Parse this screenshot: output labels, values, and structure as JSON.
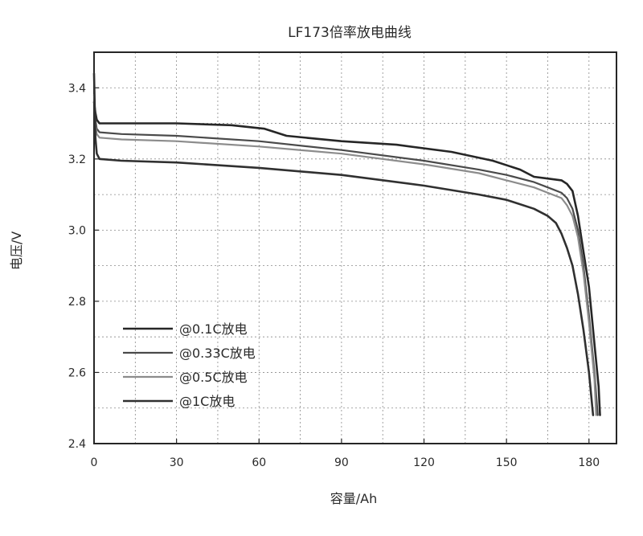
{
  "chart_data": {
    "type": "line",
    "title": "LF173倍率放电曲线",
    "xlabel": "容量/Ah",
    "ylabel": "电压/V",
    "xlim": [
      0,
      190
    ],
    "ylim": [
      2.4,
      3.5
    ],
    "xticks": [
      "0",
      "30",
      "60",
      "90",
      "120",
      "150",
      "180"
    ],
    "yticks": [
      "2.4",
      "2.6",
      "2.8",
      "3.0",
      "3.2",
      "3.4"
    ],
    "grid": true,
    "legend_position": "bottom-left",
    "series": [
      {
        "name": "@0.1C放电",
        "color": "#262626",
        "x": [
          0,
          0.5,
          1,
          2,
          10,
          30,
          50,
          62,
          70,
          90,
          110,
          130,
          145,
          155,
          160,
          165,
          170,
          172,
          174,
          176,
          178,
          180,
          182,
          183.5,
          184
        ],
        "y": [
          3.36,
          3.33,
          3.31,
          3.3,
          3.3,
          3.3,
          3.295,
          3.285,
          3.265,
          3.25,
          3.24,
          3.22,
          3.195,
          3.17,
          3.15,
          3.145,
          3.14,
          3.13,
          3.11,
          3.04,
          2.94,
          2.84,
          2.68,
          2.56,
          2.48
        ]
      },
      {
        "name": "@0.33C放电",
        "color": "#4a4a4a",
        "x": [
          0,
          0.5,
          1,
          2,
          10,
          30,
          60,
          90,
          120,
          140,
          150,
          160,
          165,
          170,
          172,
          174,
          176,
          178,
          180,
          182,
          183.2
        ],
        "y": [
          3.38,
          3.31,
          3.285,
          3.275,
          3.27,
          3.265,
          3.25,
          3.225,
          3.195,
          3.17,
          3.155,
          3.135,
          3.12,
          3.105,
          3.09,
          3.06,
          3.0,
          2.9,
          2.76,
          2.6,
          2.48
        ]
      },
      {
        "name": "@0.5C放电",
        "color": "#8c8c8c",
        "x": [
          0,
          0.5,
          1,
          2,
          10,
          30,
          60,
          90,
          120,
          140,
          150,
          160,
          165,
          170,
          172,
          174,
          176,
          178,
          180,
          182,
          182.6
        ],
        "y": [
          3.38,
          3.3,
          3.27,
          3.26,
          3.255,
          3.25,
          3.235,
          3.215,
          3.185,
          3.16,
          3.14,
          3.12,
          3.105,
          3.09,
          3.07,
          3.04,
          2.98,
          2.88,
          2.74,
          2.58,
          2.48
        ]
      },
      {
        "name": "@1C放电",
        "color": "#303030",
        "x": [
          0,
          0.5,
          1,
          2,
          10,
          30,
          60,
          90,
          120,
          140,
          150,
          160,
          165,
          168,
          170,
          172,
          174,
          176,
          178,
          180,
          181.5
        ],
        "y": [
          3.44,
          3.26,
          3.215,
          3.2,
          3.195,
          3.19,
          3.175,
          3.155,
          3.125,
          3.1,
          3.085,
          3.06,
          3.04,
          3.02,
          2.99,
          2.95,
          2.9,
          2.82,
          2.72,
          2.6,
          2.48
        ]
      }
    ]
  }
}
